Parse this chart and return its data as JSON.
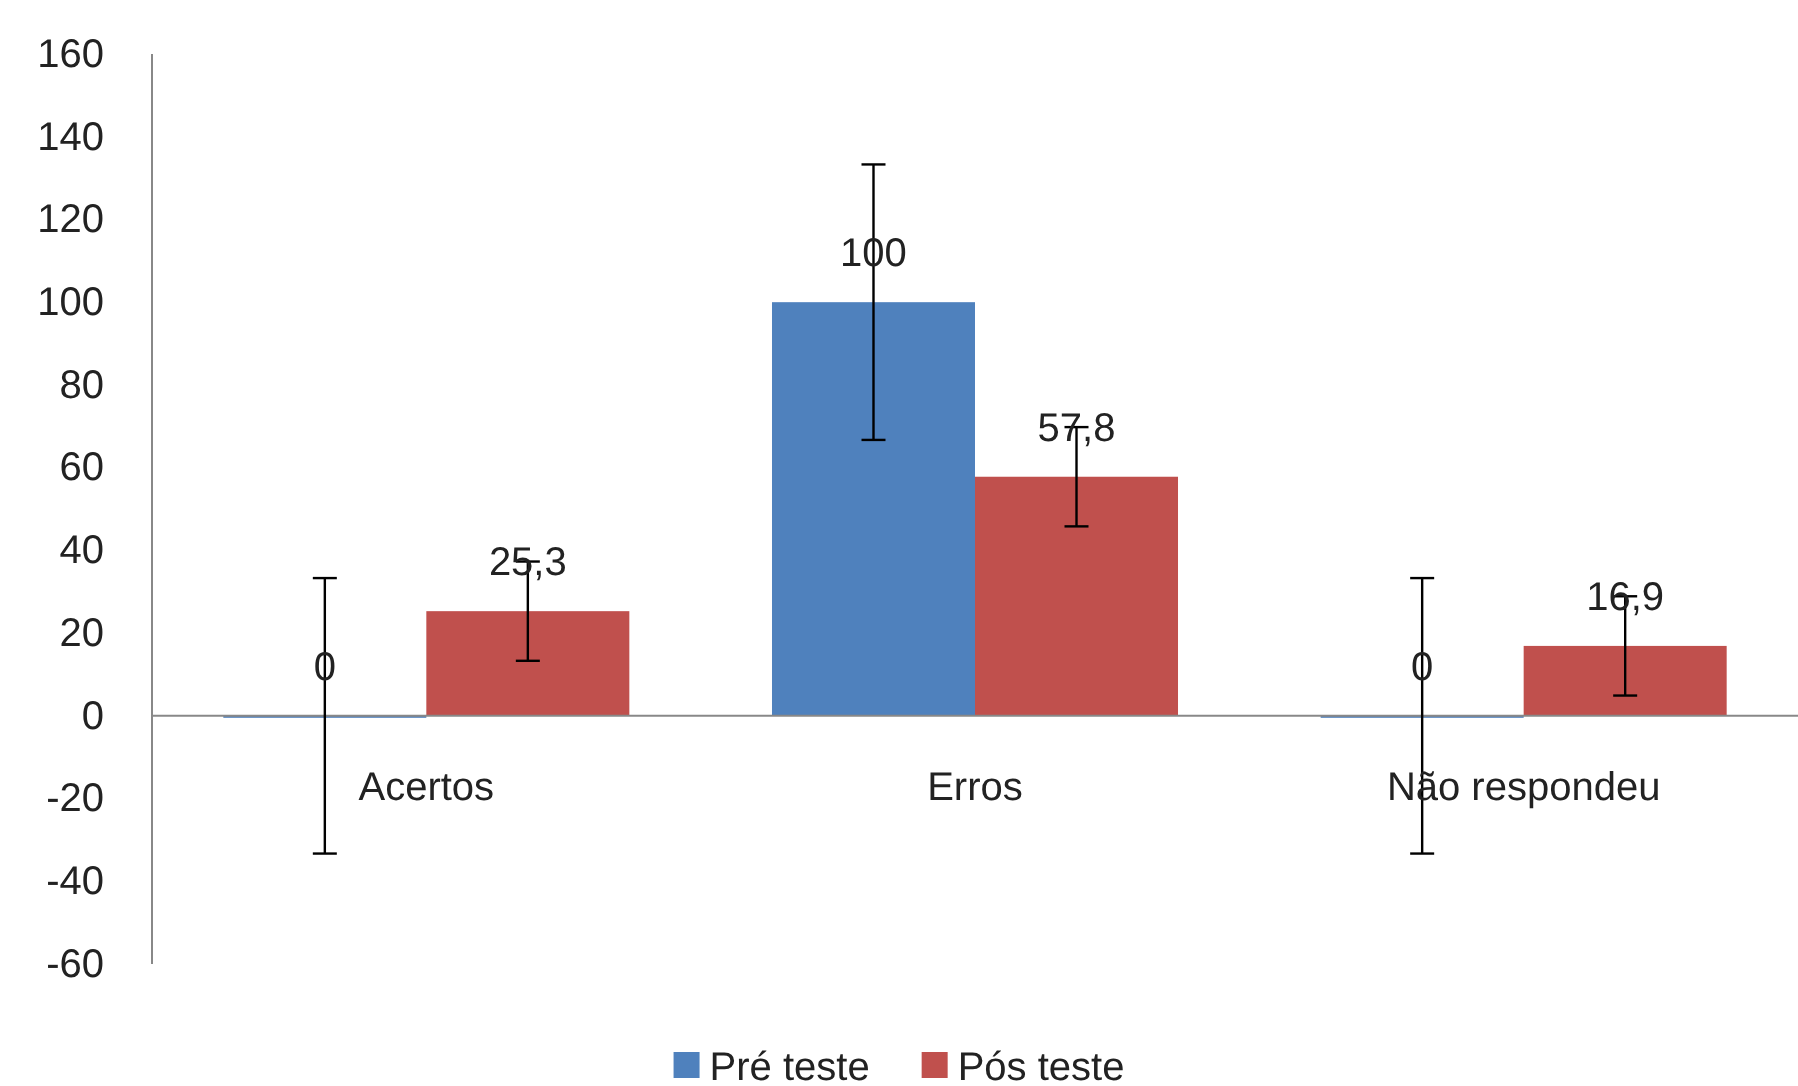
{
  "chart_data": {
    "type": "bar",
    "categories": [
      "Acertos",
      "Erros",
      "Não respondeu"
    ],
    "series": [
      {
        "name": "Pré teste",
        "color": "#4f81bd",
        "values": [
          0,
          100,
          0
        ],
        "errors": [
          33.3,
          33.3,
          33.3
        ],
        "value_labels": [
          "0",
          "100",
          "0"
        ]
      },
      {
        "name": "Pós teste",
        "color": "#c0504d",
        "values": [
          25.3,
          57.8,
          16.9
        ],
        "errors": [
          12,
          12,
          12
        ],
        "value_labels": [
          "25,3",
          "57,8",
          "16,9"
        ]
      }
    ],
    "ylim": [
      -60,
      160
    ],
    "yticks": [
      -60,
      -40,
      -20,
      0,
      20,
      40,
      60,
      80,
      100,
      120,
      140,
      160
    ],
    "grid": false,
    "legend": "bottom"
  }
}
